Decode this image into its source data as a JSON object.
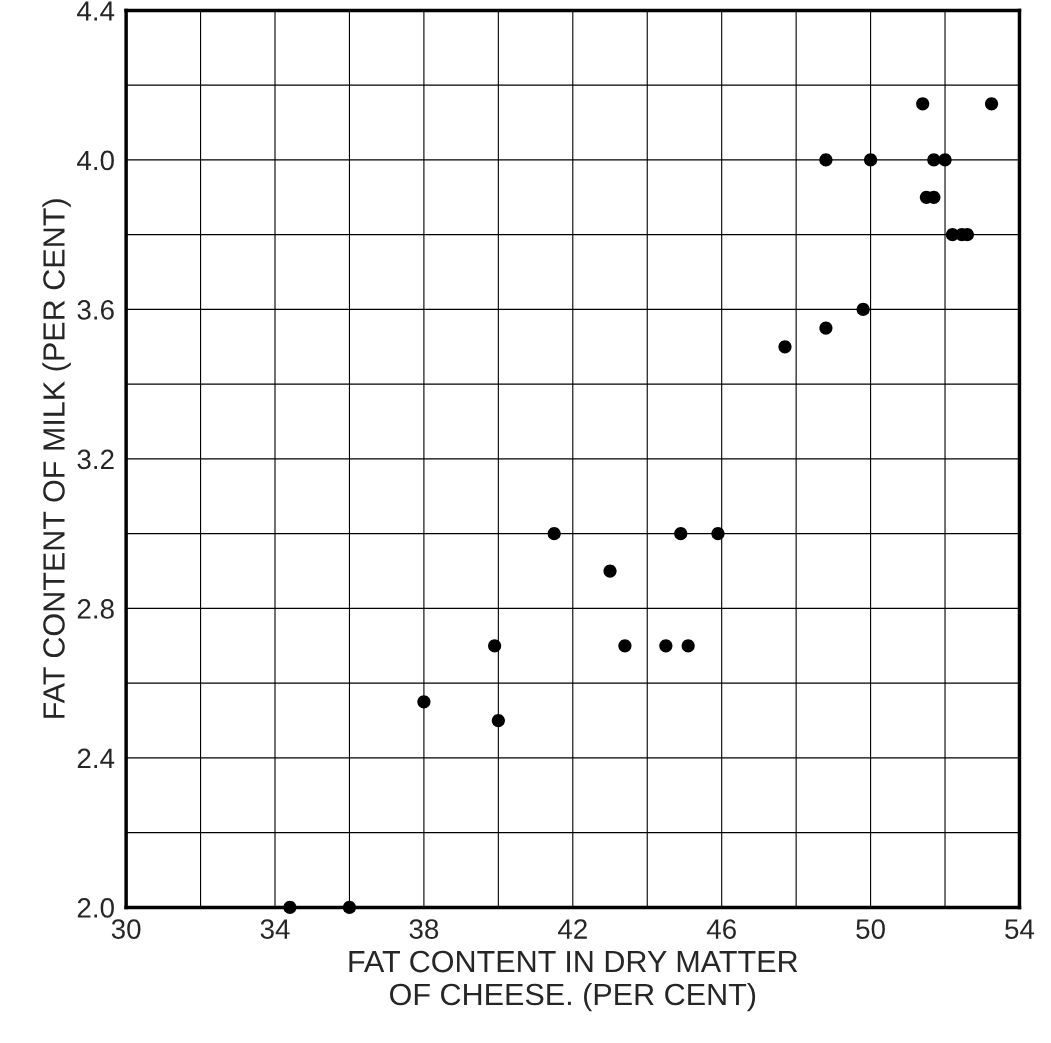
{
  "chart_data": {
    "type": "scatter",
    "xlabel": "FAT CONTENT IN DRY MATTER\nOF CHEESE. (PER CENT)",
    "ylabel": "FAT CONTENT OF MILK (PER CENT)",
    "x": [
      34.4,
      36.0,
      38.0,
      39.9,
      40.0,
      41.5,
      43.0,
      43.4,
      44.5,
      44.9,
      45.1,
      45.9,
      47.7,
      48.8,
      48.8,
      49.8,
      50.0,
      51.4,
      51.5,
      51.7,
      51.7,
      52.0,
      52.2,
      52.45,
      52.6,
      53.25
    ],
    "values": [
      2.0,
      2.0,
      2.55,
      2.7,
      2.5,
      3.0,
      2.9,
      2.7,
      2.7,
      3.0,
      2.7,
      3.0,
      3.5,
      4.0,
      3.55,
      3.6,
      4.0,
      4.15,
      3.9,
      3.9,
      4.0,
      4.0,
      3.8,
      3.8,
      3.8,
      4.15
    ],
    "color": "#000000",
    "marker": "circle",
    "grid": true,
    "xlim": [
      30,
      54
    ],
    "ylim": [
      2.0,
      4.4
    ],
    "xticks": [
      30,
      {
        "value": 32,
        "label": null
      },
      34,
      {
        "value": 36,
        "label": null
      },
      38,
      {
        "value": 40,
        "label": null
      },
      42,
      {
        "value": 44,
        "label": null
      },
      46,
      {
        "value": 48,
        "label": null
      },
      50,
      {
        "value": 52,
        "label": null
      },
      54
    ],
    "yticks": [
      {
        "value": 2.0,
        "label": "2.0"
      },
      {
        "value": 2.2,
        "label": null
      },
      {
        "value": 2.4,
        "label": "2.4"
      },
      {
        "value": 2.6,
        "label": null
      },
      {
        "value": 2.8,
        "label": "2.8"
      },
      {
        "value": 3.0,
        "label": null
      },
      {
        "value": 3.2,
        "label": "3.2"
      },
      {
        "value": 3.4,
        "label": null
      },
      {
        "value": 3.6,
        "label": "3.6"
      },
      {
        "value": 3.8,
        "label": null
      },
      {
        "value": 4.0,
        "label": "4.0"
      },
      {
        "value": 4.2,
        "label": null
      },
      {
        "value": 4.4,
        "label": "4.4"
      }
    ]
  }
}
